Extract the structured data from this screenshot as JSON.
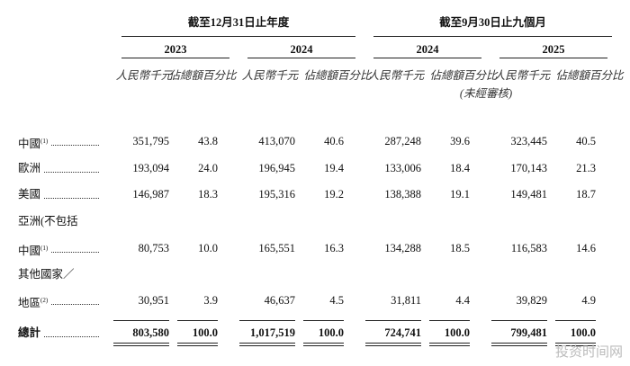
{
  "header": {
    "period_groups": [
      {
        "label": "截至12月31日止年度",
        "years": [
          "2023",
          "2024"
        ]
      },
      {
        "label": "截至9月30日止九個月",
        "years": [
          "2024",
          "2025"
        ],
        "note": "(未經審核)"
      }
    ],
    "column_labels": [
      "人民幣千元",
      "佔總額百分比"
    ]
  },
  "rows": [
    {
      "label": [
        "中國"
      ],
      "footnote": "(1)",
      "values": [
        "351,795",
        "43.8",
        "413,070",
        "40.6",
        "287,248",
        "39.6",
        "323,445",
        "40.5"
      ]
    },
    {
      "label": [
        "歐洲"
      ],
      "values": [
        "193,094",
        "24.0",
        "196,945",
        "19.4",
        "133,006",
        "18.4",
        "170,143",
        "21.3"
      ]
    },
    {
      "label": [
        "美國"
      ],
      "values": [
        "146,987",
        "18.3",
        "195,316",
        "19.2",
        "138,388",
        "19.1",
        "149,481",
        "18.7"
      ]
    },
    {
      "label": [
        "亞洲(不包括",
        "中國"
      ],
      "footnote": "(1)",
      "values": [
        "80,753",
        "10.0",
        "165,551",
        "16.3",
        "134,288",
        "18.5",
        "116,583",
        "14.6"
      ]
    },
    {
      "label": [
        "其他國家／",
        "地區"
      ],
      "footnote": "(2)",
      "values": [
        "30,951",
        "3.9",
        "46,637",
        "4.5",
        "31,811",
        "4.4",
        "39,829",
        "4.9"
      ]
    },
    {
      "label": [
        "總計"
      ],
      "values": [
        "803,580",
        "100.0",
        "1,017,519",
        "100.0",
        "724,741",
        "100.0",
        "799,481",
        "100.0"
      ]
    }
  ],
  "watermark": "投资时间网"
}
